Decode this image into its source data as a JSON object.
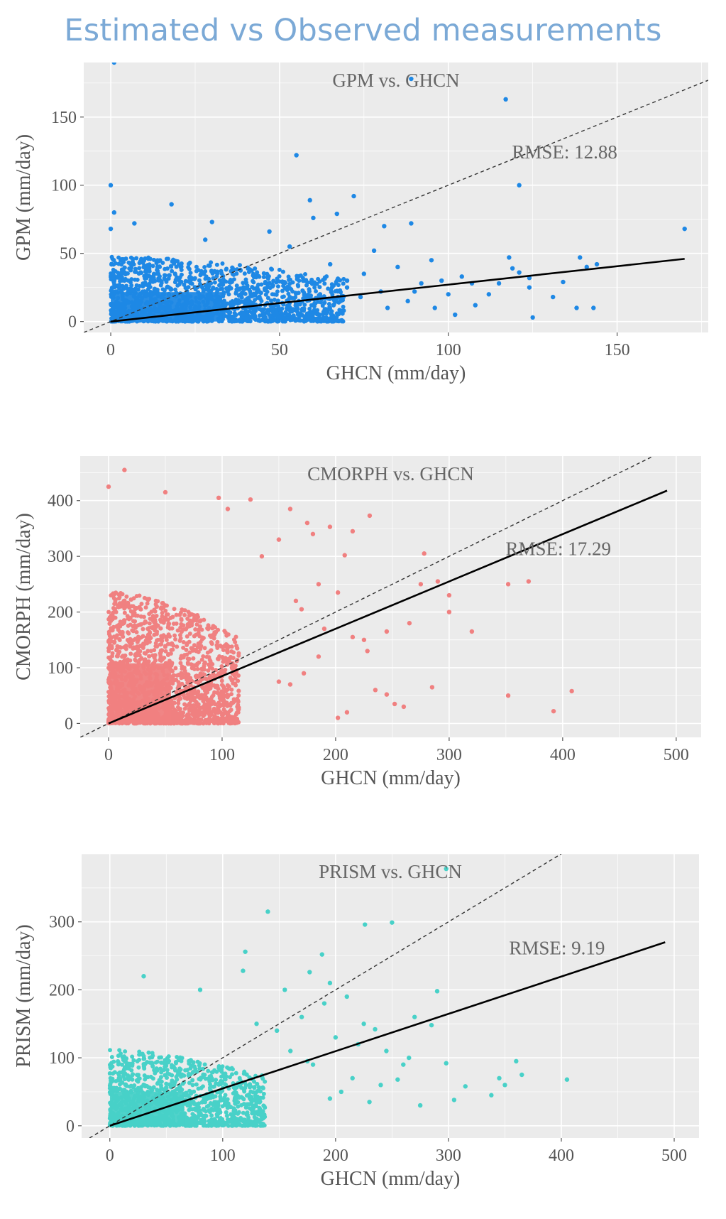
{
  "page": {
    "title": "Estimated vs Observed measurements"
  },
  "colors": {
    "panel_bg": "#ebebeb",
    "grid": "#ffffff",
    "fit_line": "#000000",
    "one_to_one": "#333333"
  },
  "chart_data": [
    {
      "type": "scatter",
      "title": "GPM vs. GHCN",
      "xlabel": "GHCN (mm/day)",
      "ylabel": "GPM (mm/day)",
      "annotation": "RMSE: 12.88",
      "xlim": [
        -8,
        177
      ],
      "ylim": [
        -8,
        190
      ],
      "xticks": [
        0,
        50,
        100,
        150
      ],
      "yticks": [
        0,
        50,
        100,
        150
      ],
      "grid": true,
      "point_color": "#1e88e5",
      "fit_line": [
        [
          0,
          0
        ],
        [
          170,
          46
        ]
      ],
      "reference_line": "y = x (dashed)",
      "cloud": {
        "x_max": 60,
        "y_max": 48,
        "density": 0.06
      },
      "points": [
        [
          1,
          190
        ],
        [
          89,
          178
        ],
        [
          117,
          163
        ],
        [
          55,
          122
        ],
        [
          0,
          100
        ],
        [
          121,
          100
        ],
        [
          1,
          80
        ],
        [
          7,
          72
        ],
        [
          18,
          86
        ],
        [
          30,
          73
        ],
        [
          59,
          89
        ],
        [
          60,
          76
        ],
        [
          67,
          79
        ],
        [
          72,
          92
        ],
        [
          81,
          70
        ],
        [
          89,
          72
        ],
        [
          47,
          66
        ],
        [
          28,
          60
        ],
        [
          53,
          55
        ],
        [
          0,
          68
        ],
        [
          78,
          52
        ],
        [
          95,
          45
        ],
        [
          98,
          30
        ],
        [
          100,
          20
        ],
        [
          104,
          33
        ],
        [
          107,
          28
        ],
        [
          112,
          20
        ],
        [
          115,
          28
        ],
        [
          118,
          47
        ],
        [
          119,
          39
        ],
        [
          121,
          36
        ],
        [
          124,
          32
        ],
        [
          124,
          25
        ],
        [
          125,
          3
        ],
        [
          131,
          18
        ],
        [
          134,
          29
        ],
        [
          138,
          10
        ],
        [
          139,
          47
        ],
        [
          141,
          40
        ],
        [
          143,
          10
        ],
        [
          144,
          42
        ],
        [
          170,
          68
        ],
        [
          65,
          42
        ],
        [
          70,
          30
        ],
        [
          75,
          35
        ],
        [
          80,
          22
        ],
        [
          85,
          40
        ],
        [
          88,
          15
        ],
        [
          92,
          28
        ],
        [
          96,
          10
        ],
        [
          102,
          5
        ],
        [
          108,
          12
        ],
        [
          69,
          8
        ],
        [
          74,
          18
        ],
        [
          82,
          10
        ],
        [
          90,
          22
        ],
        [
          57,
          30
        ],
        [
          62,
          20
        ],
        [
          66,
          12
        ],
        [
          70,
          25
        ]
      ]
    },
    {
      "type": "scatter",
      "title": "CMORPH vs. GHCN",
      "xlabel": "GHCN (mm/day)",
      "ylabel": "CMORPH (mm/day)",
      "annotation": "RMSE: 17.29",
      "xlim": [
        -25,
        522
      ],
      "ylim": [
        -25,
        480
      ],
      "xticks": [
        0,
        100,
        200,
        300,
        400,
        500
      ],
      "yticks": [
        0,
        100,
        200,
        300,
        400
      ],
      "grid": true,
      "point_color": "#f08080",
      "fit_line": [
        [
          0,
          0
        ],
        [
          492,
          418
        ]
      ],
      "reference_line": "y = x (dashed)",
      "cloud": {
        "x_max": 100,
        "y_max": 240,
        "density": 0.06
      },
      "points": [
        [
          0,
          425
        ],
        [
          14,
          455
        ],
        [
          50,
          415
        ],
        [
          97,
          405
        ],
        [
          125,
          402
        ],
        [
          105,
          385
        ],
        [
          160,
          385
        ],
        [
          230,
          373
        ],
        [
          195,
          353
        ],
        [
          175,
          360
        ],
        [
          180,
          340
        ],
        [
          150,
          330
        ],
        [
          215,
          345
        ],
        [
          208,
          302
        ],
        [
          135,
          300
        ],
        [
          185,
          250
        ],
        [
          202,
          235
        ],
        [
          165,
          220
        ],
        [
          170,
          205
        ],
        [
          190,
          170
        ],
        [
          215,
          155
        ],
        [
          225,
          150
        ],
        [
          245,
          165
        ],
        [
          265,
          180
        ],
        [
          275,
          250
        ],
        [
          278,
          305
        ],
        [
          290,
          255
        ],
        [
          300,
          230
        ],
        [
          300,
          200
        ],
        [
          320,
          165
        ],
        [
          228,
          130
        ],
        [
          235,
          60
        ],
        [
          245,
          52
        ],
        [
          252,
          35
        ],
        [
          260,
          30
        ],
        [
          285,
          65
        ],
        [
          352,
          250
        ],
        [
          370,
          255
        ],
        [
          352,
          50
        ],
        [
          392,
          22
        ],
        [
          408,
          58
        ],
        [
          210,
          20
        ],
        [
          202,
          10
        ],
        [
          160,
          70
        ],
        [
          185,
          120
        ],
        [
          150,
          75
        ],
        [
          172,
          90
        ]
      ]
    },
    {
      "type": "scatter",
      "title": "PRISM vs. GHCN",
      "xlabel": "GHCN (mm/day)",
      "ylabel": "PRISM (mm/day)",
      "annotation": "RMSE: 9.19",
      "xlim": [
        -25,
        522
      ],
      "ylim": [
        -18,
        400
      ],
      "xticks": [
        0,
        100,
        200,
        300,
        400,
        500
      ],
      "yticks": [
        0,
        100,
        200,
        300
      ],
      "grid": true,
      "point_color": "#48d1c8",
      "fit_line": [
        [
          0,
          0
        ],
        [
          492,
          270
        ]
      ],
      "reference_line": "y = x (dashed)",
      "cloud": {
        "x_max": 120,
        "y_max": 112,
        "density": 0.06
      },
      "points": [
        [
          298,
          378
        ],
        [
          140,
          315
        ],
        [
          226,
          296
        ],
        [
          250,
          299
        ],
        [
          120,
          256
        ],
        [
          118,
          228
        ],
        [
          188,
          252
        ],
        [
          177,
          226
        ],
        [
          195,
          210
        ],
        [
          30,
          220
        ],
        [
          80,
          200
        ],
        [
          155,
          200
        ],
        [
          170,
          160
        ],
        [
          190,
          180
        ],
        [
          200,
          130
        ],
        [
          210,
          190
        ],
        [
          220,
          120
        ],
        [
          225,
          150
        ],
        [
          235,
          142
        ],
        [
          245,
          110
        ],
        [
          260,
          90
        ],
        [
          265,
          100
        ],
        [
          290,
          198
        ],
        [
          270,
          160
        ],
        [
          285,
          148
        ],
        [
          298,
          92
        ],
        [
          315,
          58
        ],
        [
          338,
          45
        ],
        [
          350,
          60
        ],
        [
          360,
          95
        ],
        [
          365,
          75
        ],
        [
          405,
          68
        ],
        [
          345,
          70
        ],
        [
          240,
          60
        ],
        [
          305,
          38
        ],
        [
          255,
          68
        ],
        [
          215,
          70
        ],
        [
          275,
          30
        ],
        [
          160,
          110
        ],
        [
          175,
          95
        ],
        [
          148,
          140
        ],
        [
          130,
          150
        ],
        [
          205,
          50
        ],
        [
          180,
          90
        ],
        [
          195,
          40
        ],
        [
          230,
          35
        ]
      ]
    }
  ]
}
